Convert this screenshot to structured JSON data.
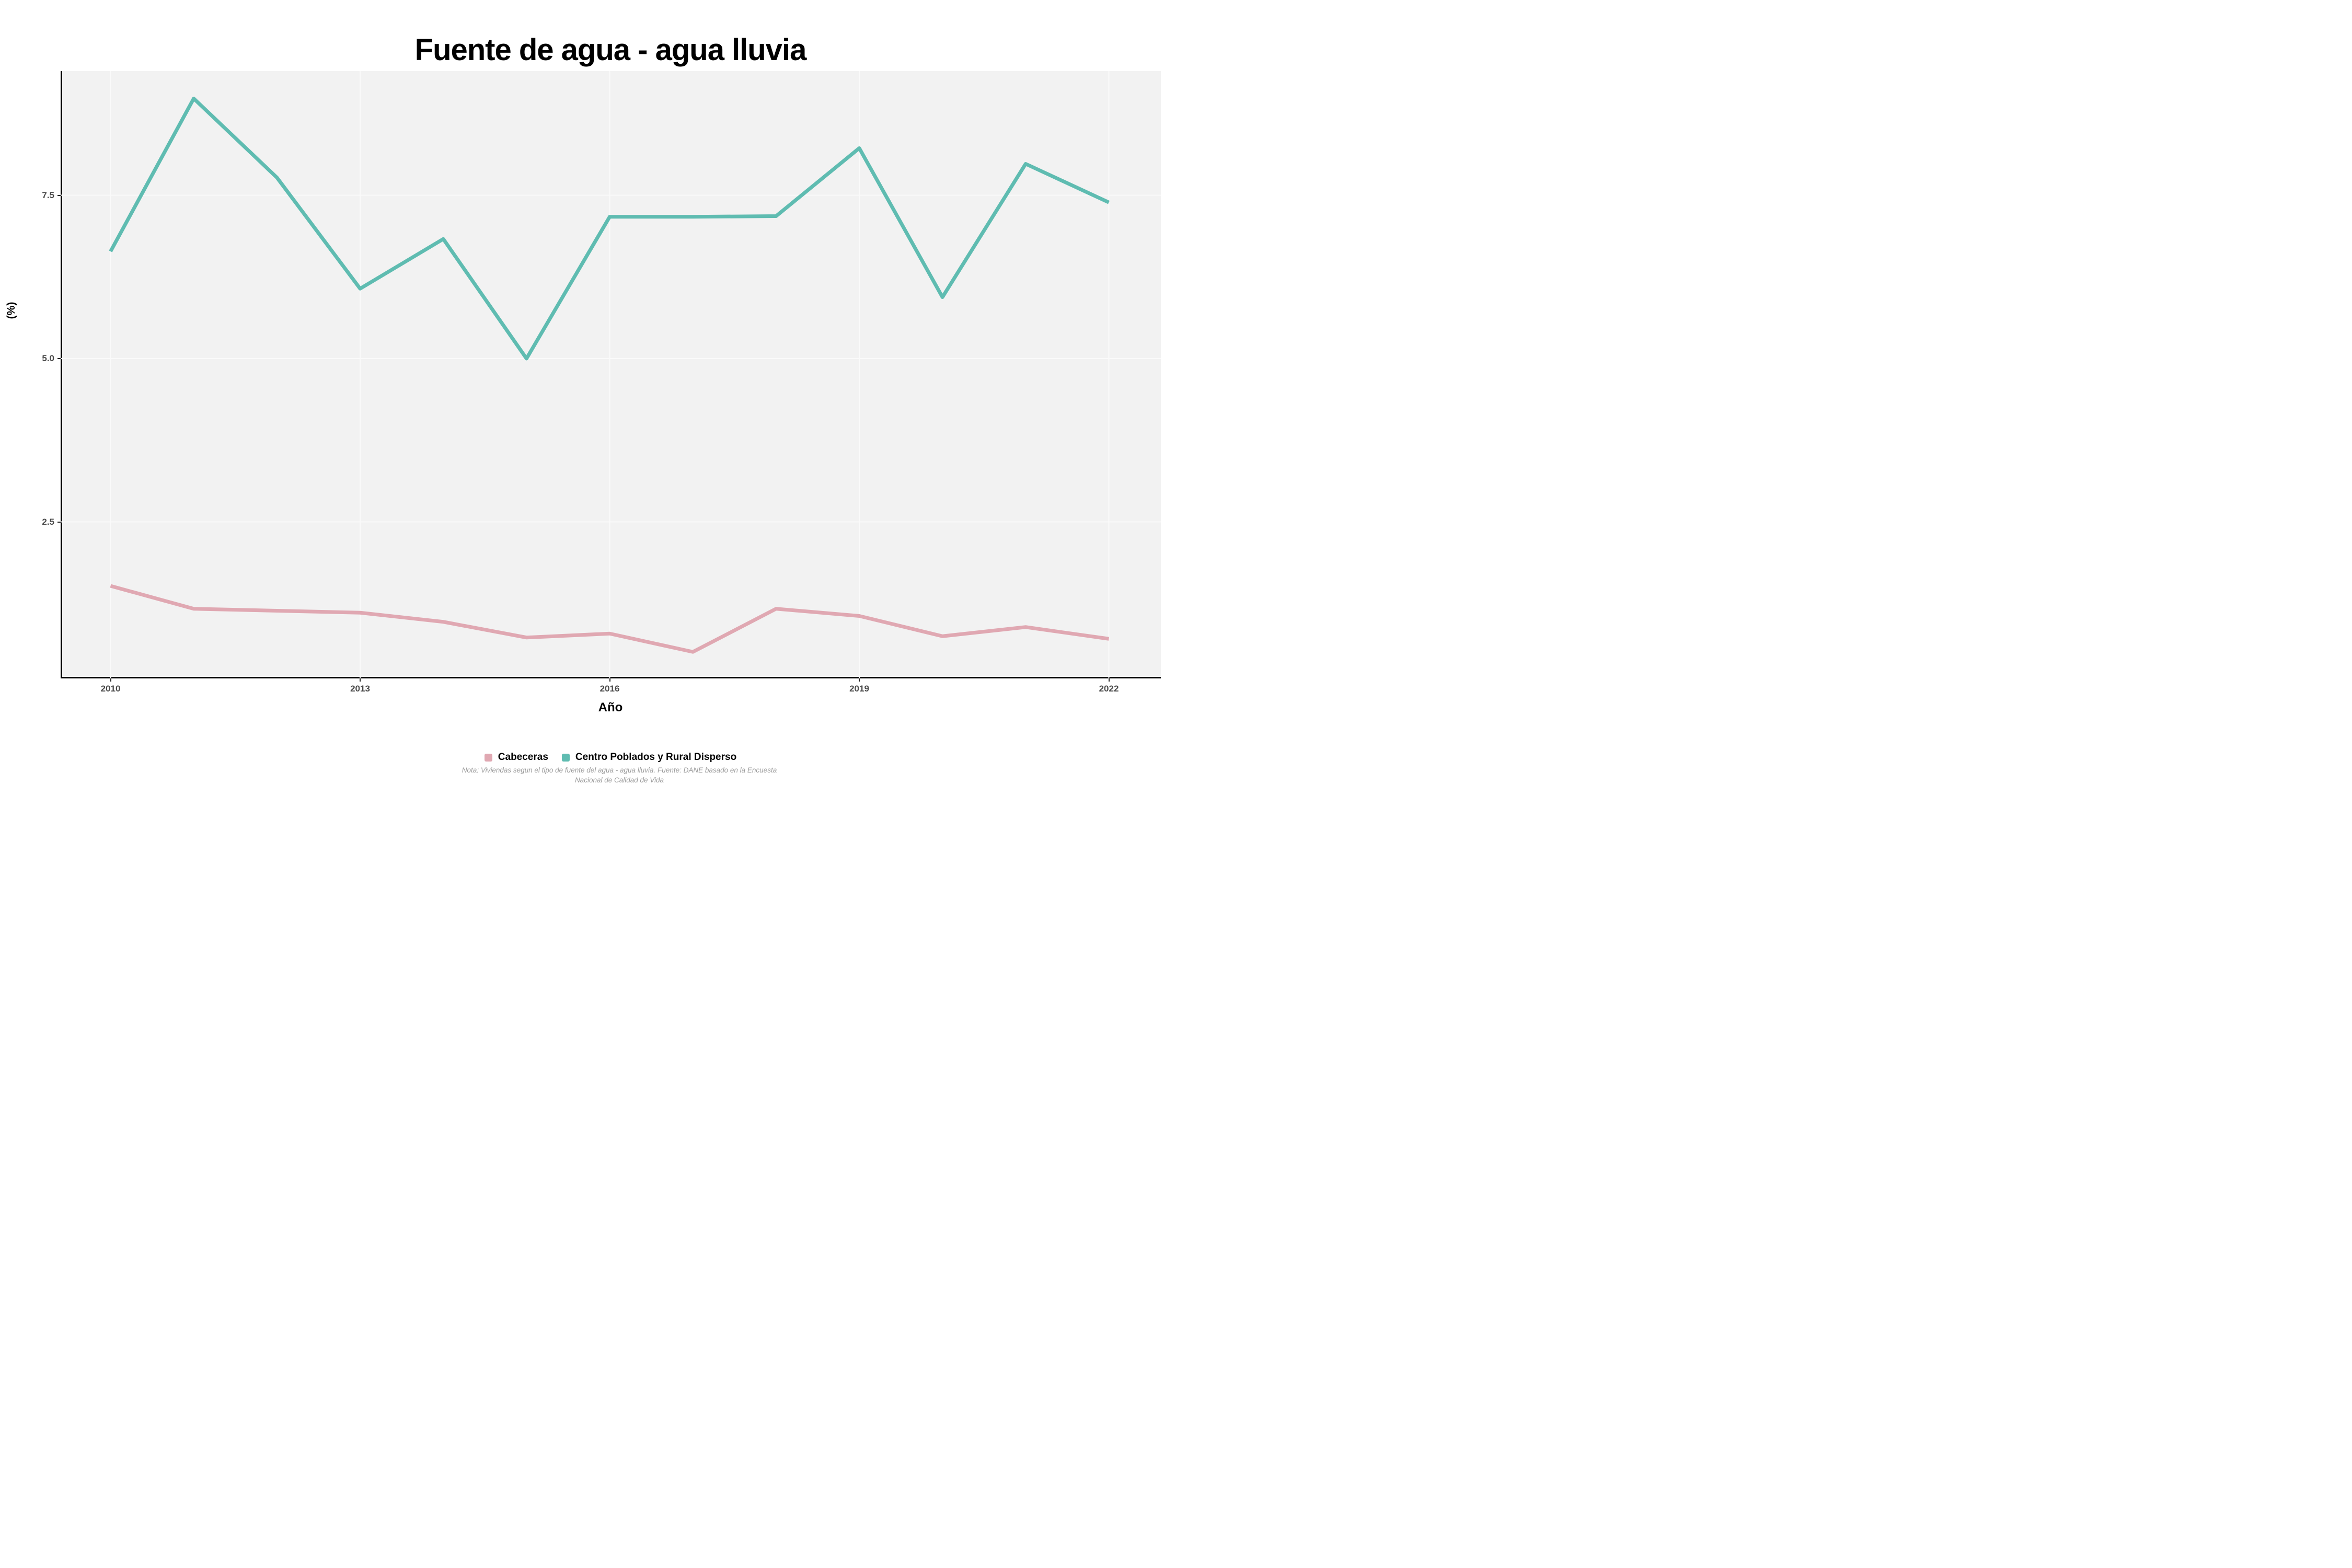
{
  "title": "Fuente de agua - agua lluvia",
  "x_axis": {
    "label": "Año",
    "ticks": [
      "2010",
      "2013",
      "2016",
      "2019",
      "2022"
    ],
    "tick_values": [
      2010,
      2013,
      2016,
      2019,
      2022
    ]
  },
  "y_axis": {
    "label": "(%)",
    "ticks": [
      "2.5",
      "5.0",
      "7.5"
    ],
    "tick_values": [
      2.5,
      5.0,
      7.5
    ]
  },
  "legend": {
    "items": [
      {
        "label": "Cabeceras",
        "color": "#e0a8b2"
      },
      {
        "label": "Centro Poblados y Rural Disperso",
        "color": "#5fbcb1"
      }
    ],
    "position": "bottom"
  },
  "caption": {
    "line1": "Nota: Viviendas segun el tipo de fuente del agua - agua lluvia. Fuente: DANE basado en la Encuesta",
    "line2": "Nacional de Calidad de Vida"
  },
  "colors": {
    "panel_background": "#f2f2f2",
    "gridline": "#fafafa",
    "axis_line": "#000000",
    "axis_text": "#4a4a4a",
    "cabeceras": "#e0a8b2",
    "centro_poblados": "#5fbcb1"
  },
  "chart_data": {
    "type": "line",
    "x": [
      2010,
      2011,
      2012,
      2013,
      2014,
      2015,
      2016,
      2017,
      2018,
      2019,
      2020,
      2021,
      2022
    ],
    "series": [
      {
        "name": "Cabeceras",
        "color": "#e0a8b2",
        "values": [
          1.52,
          1.17,
          1.14,
          1.11,
          0.97,
          0.73,
          0.79,
          0.51,
          1.17,
          1.06,
          0.75,
          0.89,
          0.71
        ]
      },
      {
        "name": "Centro Poblados y Rural Disperso",
        "color": "#5fbcb1",
        "values": [
          6.64,
          8.98,
          7.77,
          6.07,
          6.83,
          5.0,
          7.17,
          7.17,
          7.18,
          8.22,
          5.94,
          7.98,
          7.39
        ]
      }
    ],
    "title": "Fuente de agua - agua lluvia",
    "xlabel": "Año",
    "ylabel": "(%)",
    "xlim": [
      2009.4,
      2022.6
    ],
    "ylim": [
      0.09,
      9.4
    ],
    "grid": "major",
    "legend_position": "bottom"
  }
}
